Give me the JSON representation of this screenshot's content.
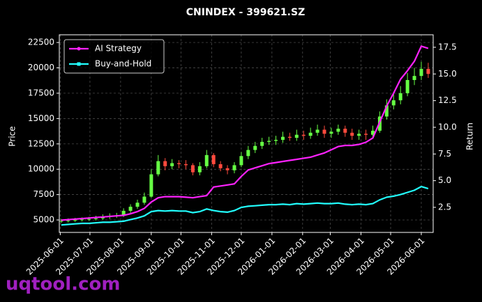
{
  "chart_data": {
    "type": "candlestick",
    "title": "CNINDEX - 399621.SZ",
    "y_label": "Price",
    "y2_label": "Return",
    "watermark": "uqtool.com",
    "grid": true,
    "legend": "upper left",
    "xlim": [
      "2025-05-31",
      "2026-06-13"
    ],
    "xticks": [
      "2025-06-01",
      "2025-07-01",
      "2025-08-01",
      "2025-09-01",
      "2025-10-01",
      "2025-11-01",
      "2025-12-01",
      "2026-01-01",
      "2026-02-01",
      "2026-03-01",
      "2026-04-01",
      "2026-05-01",
      "2026-06-01"
    ],
    "ylim": [
      3770,
      23260
    ],
    "yticks": [
      5000,
      7500,
      10000,
      12500,
      15000,
      17500,
      20000,
      22500
    ],
    "y2lim": [
      0.15,
      18.67
    ],
    "y2ticks": [
      2.5,
      {
        "value": 5,
        "label": "5.0"
      },
      7.5,
      {
        "value": 10,
        "label": "10.0"
      },
      12.5,
      {
        "value": 15,
        "label": "15.0"
      },
      17.5
    ],
    "x": [
      "2025-06-02",
      "2025-06-09",
      "2025-06-16",
      "2025-06-23",
      "2025-06-30",
      "2025-07-07",
      "2025-07-14",
      "2025-07-21",
      "2025-07-28",
      "2025-08-04",
      "2025-08-11",
      "2025-08-18",
      "2025-08-25",
      "2025-09-01",
      "2025-09-08",
      "2025-09-15",
      "2025-09-22",
      "2025-09-29",
      "2025-10-06",
      "2025-10-13",
      "2025-10-20",
      "2025-10-27",
      "2025-11-03",
      "2025-11-10",
      "2025-11-17",
      "2025-11-24",
      "2025-12-01",
      "2025-12-08",
      "2025-12-15",
      "2025-12-22",
      "2025-12-29",
      "2026-01-05",
      "2026-01-12",
      "2026-01-19",
      "2026-01-26",
      "2026-02-02",
      "2026-02-09",
      "2026-02-16",
      "2026-02-23",
      "2026-03-02",
      "2026-03-09",
      "2026-03-16",
      "2026-03-23",
      "2026-03-30",
      "2026-04-06",
      "2026-04-13",
      "2026-04-20",
      "2026-04-27",
      "2026-05-04",
      "2026-05-11",
      "2026-05-18",
      "2026-05-25",
      "2026-06-01",
      "2026-06-08"
    ],
    "candles": {
      "up_color": "#66ff44",
      "down_color": "#ff4a3d",
      "open": [
        4850,
        4900,
        4950,
        5000,
        5050,
        5100,
        5150,
        5300,
        5400,
        5450,
        5900,
        6300,
        6700,
        7300,
        9500,
        10800,
        10300,
        10600,
        10500,
        10400,
        9700,
        10300,
        11400,
        10500,
        10100,
        9900,
        10400,
        11300,
        11900,
        12300,
        12700,
        12800,
        12900,
        13200,
        13100,
        13400,
        13300,
        13600,
        13900,
        13500,
        13700,
        14000,
        13600,
        13300,
        13500,
        13400,
        13800,
        15200,
        16300,
        16800,
        17500,
        18800,
        19200,
        19900
      ],
      "high": [
        5100,
        5150,
        5200,
        5250,
        5300,
        5400,
        5550,
        5650,
        5700,
        6150,
        6550,
        7000,
        7700,
        10000,
        11400,
        11100,
        11000,
        10900,
        10900,
        10600,
        10700,
        11900,
        11600,
        10800,
        10400,
        10700,
        11700,
        12300,
        12700,
        13100,
        13200,
        13300,
        13700,
        13600,
        13900,
        13800,
        14100,
        14400,
        14300,
        14100,
        14400,
        14300,
        14000,
        13900,
        13900,
        14300,
        15700,
        16900,
        17600,
        18200,
        19500,
        20000,
        20600,
        20500
      ],
      "low": [
        4700,
        4750,
        4800,
        4850,
        4900,
        4950,
        5000,
        5100,
        5200,
        5300,
        5700,
        6100,
        6500,
        7200,
        9300,
        9900,
        10000,
        10100,
        10000,
        9400,
        9400,
        10100,
        10200,
        9800,
        9500,
        9600,
        10200,
        11000,
        11600,
        12000,
        12400,
        12400,
        12600,
        12800,
        12800,
        12900,
        13000,
        13300,
        13100,
        13100,
        13400,
        13200,
        12900,
        12900,
        12900,
        13100,
        13600,
        14900,
        15900,
        16400,
        17200,
        18300,
        18800,
        19000
      ],
      "close": [
        4900,
        4950,
        5000,
        5050,
        5100,
        5150,
        5300,
        5400,
        5450,
        5900,
        6300,
        6700,
        7300,
        9500,
        10800,
        10300,
        10600,
        10500,
        10400,
        9700,
        10300,
        11400,
        10500,
        10100,
        9900,
        10400,
        11300,
        11900,
        12300,
        12700,
        12800,
        12900,
        13200,
        13100,
        13400,
        13300,
        13600,
        13900,
        13500,
        13700,
        14000,
        13600,
        13300,
        13500,
        13400,
        13800,
        15200,
        16300,
        16800,
        17500,
        18800,
        19200,
        19900,
        19400
      ]
    },
    "series": [
      {
        "name": "AI Strategy",
        "color": "#ff22ff",
        "marker": "circle",
        "axis": "y2",
        "values": [
          1.3,
          1.35,
          1.4,
          1.45,
          1.5,
          1.55,
          1.6,
          1.65,
          1.7,
          1.75,
          1.9,
          2.1,
          2.4,
          3.0,
          3.4,
          3.5,
          3.5,
          3.5,
          3.45,
          3.4,
          3.5,
          3.6,
          4.4,
          4.5,
          4.6,
          4.7,
          5.4,
          6.0,
          6.2,
          6.4,
          6.6,
          6.7,
          6.8,
          6.9,
          7.0,
          7.1,
          7.2,
          7.4,
          7.6,
          7.9,
          8.2,
          8.3,
          8.3,
          8.4,
          8.6,
          9.0,
          10.5,
          12.0,
          13.2,
          14.5,
          15.3,
          16.2,
          17.6,
          17.4
        ]
      },
      {
        "name": "Buy-and-Hold",
        "color": "#22ffff",
        "marker": "square",
        "axis": "y2",
        "values": [
          0.85,
          0.9,
          0.95,
          1.0,
          1.0,
          1.05,
          1.1,
          1.1,
          1.15,
          1.2,
          1.35,
          1.5,
          1.7,
          2.1,
          2.2,
          2.15,
          2.2,
          2.15,
          2.15,
          2.0,
          2.1,
          2.35,
          2.2,
          2.1,
          2.05,
          2.2,
          2.5,
          2.6,
          2.65,
          2.7,
          2.75,
          2.75,
          2.8,
          2.75,
          2.85,
          2.8,
          2.85,
          2.9,
          2.85,
          2.85,
          2.9,
          2.8,
          2.75,
          2.8,
          2.75,
          2.85,
          3.2,
          3.45,
          3.55,
          3.7,
          3.9,
          4.1,
          4.45,
          4.25
        ]
      }
    ]
  }
}
